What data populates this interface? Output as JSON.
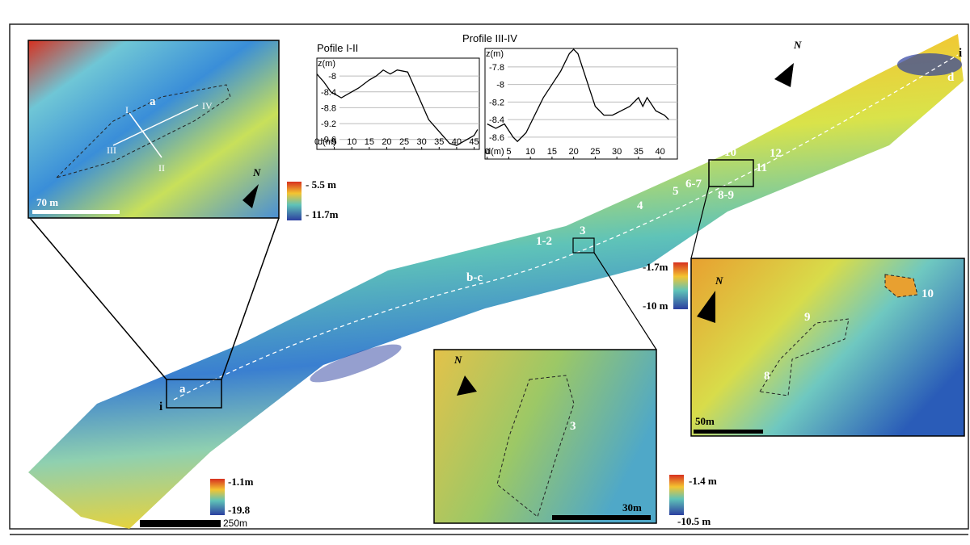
{
  "chart_data": [
    {
      "type": "line",
      "title": "Pofile I-II",
      "y_label": "z(m)",
      "x_label": "d(m)",
      "x": [
        0,
        2,
        4,
        7,
        9,
        12,
        15,
        17,
        19,
        21,
        23,
        26,
        27,
        29,
        32,
        35,
        38,
        40,
        43,
        45,
        46
      ],
      "values": [
        -7.95,
        -8.15,
        -8.4,
        -8.55,
        -8.45,
        -8.3,
        -8.1,
        -8.0,
        -7.85,
        -7.95,
        -7.85,
        -7.9,
        -8.1,
        -8.5,
        -9.1,
        -9.4,
        -9.7,
        -9.75,
        -9.6,
        -9.5,
        -9.35
      ],
      "color": "#000000",
      "xlim": [
        0,
        46.5
      ],
      "ylim": [
        -9.85,
        -7.55
      ],
      "xticks": [
        0,
        5,
        10,
        15,
        20,
        25,
        30,
        35,
        40,
        45
      ],
      "yticks": [
        -8,
        -8.4,
        -8.8,
        -9.2,
        -9.6
      ],
      "grid": true
    },
    {
      "type": "line",
      "title": "Profile III-IV",
      "y_label": "z(m)",
      "x_label": "d(m)",
      "x": [
        0,
        2,
        4,
        6,
        7,
        9,
        11,
        13,
        15,
        17,
        19,
        20,
        21,
        23,
        25,
        27,
        29,
        31,
        33,
        35,
        36,
        37,
        39,
        41,
        42
      ],
      "values": [
        -8.45,
        -8.5,
        -8.45,
        -8.6,
        -8.65,
        -8.55,
        -8.35,
        -8.15,
        -8.0,
        -7.85,
        -7.65,
        -7.6,
        -7.65,
        -7.95,
        -8.25,
        -8.35,
        -8.35,
        -8.3,
        -8.25,
        -8.15,
        -8.25,
        -8.15,
        -8.3,
        -8.35,
        -8.4
      ],
      "color": "#000000",
      "xlim": [
        -0.5,
        44
      ],
      "ylim": [
        -8.85,
        -7.59
      ],
      "xticks": [
        0,
        5,
        10,
        15,
        20,
        25,
        30,
        35,
        40
      ],
      "yticks": [
        -7.8,
        -8,
        -8.2,
        -8.4,
        -8.6
      ],
      "grid": true
    }
  ],
  "map": {
    "sites": [
      "a",
      "b-c",
      "1-2",
      "3",
      "4",
      "5",
      "6-7",
      "8-9",
      "10",
      "11",
      "12",
      "d",
      "i",
      "i"
    ],
    "inset_a": [
      "a",
      "I",
      "II",
      "III",
      "IV"
    ],
    "inset_3": [
      "3"
    ],
    "inset_10": [
      "8",
      "9",
      "10"
    ],
    "legends": [
      "- 5.5 m",
      "- 11.7m",
      "-1.7m",
      "-10 m",
      "-1.1m",
      "-19.8",
      "-1.4 m",
      "-10.5 m"
    ],
    "scale_bars": [
      "70 m",
      "250m",
      "30m",
      "50m"
    ],
    "north": [
      "N",
      "N",
      "N",
      "N"
    ]
  }
}
